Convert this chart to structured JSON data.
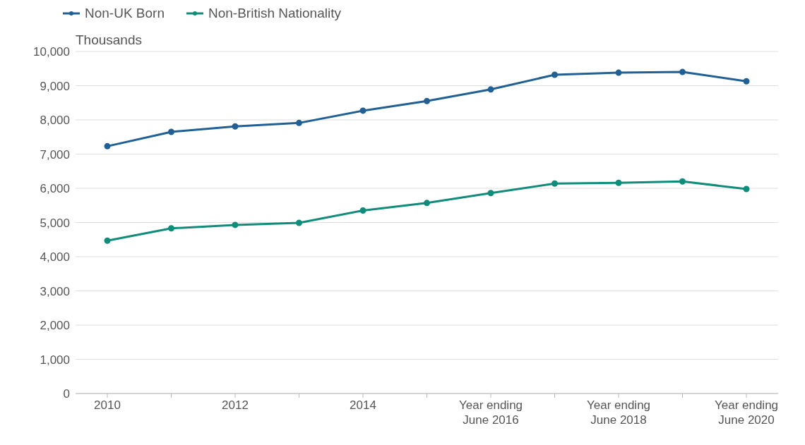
{
  "chart_data": {
    "type": "line",
    "ylabel": "Thousands",
    "categories": [
      "2010",
      null,
      "2012",
      null,
      "2014",
      null,
      "Year ending June 2016",
      null,
      "Year ending June 2018",
      null,
      "Year ending June 2020"
    ],
    "series": [
      {
        "name": "Non-UK Born",
        "color": "#206095",
        "values": [
          7230,
          7650,
          7810,
          7910,
          8270,
          8550,
          8890,
          9320,
          9380,
          9400,
          9130
        ]
      },
      {
        "name": "Non-British Nationality",
        "color": "#118c7b",
        "values": [
          4470,
          4830,
          4930,
          4990,
          5350,
          5570,
          5860,
          6140,
          6160,
          6200,
          5980
        ]
      }
    ],
    "ylim": [
      0,
      10000
    ],
    "yticks": [
      0,
      {
        "value": 1000,
        "label": "1,000"
      },
      {
        "value": 2000,
        "label": "2,000"
      },
      {
        "value": 3000,
        "label": "3,000"
      },
      {
        "value": 4000,
        "label": "4,000"
      },
      {
        "value": 5000,
        "label": "5,000"
      },
      {
        "value": 6000,
        "label": "6,000"
      },
      {
        "value": 7000,
        "label": "7,000"
      },
      {
        "value": 8000,
        "label": "8,000"
      },
      {
        "value": 9000,
        "label": "9,000"
      },
      {
        "value": 10000,
        "label": "10,000"
      }
    ],
    "grid": "y",
    "legend": "top left",
    "marker": "circle",
    "line_style": "solid"
  }
}
